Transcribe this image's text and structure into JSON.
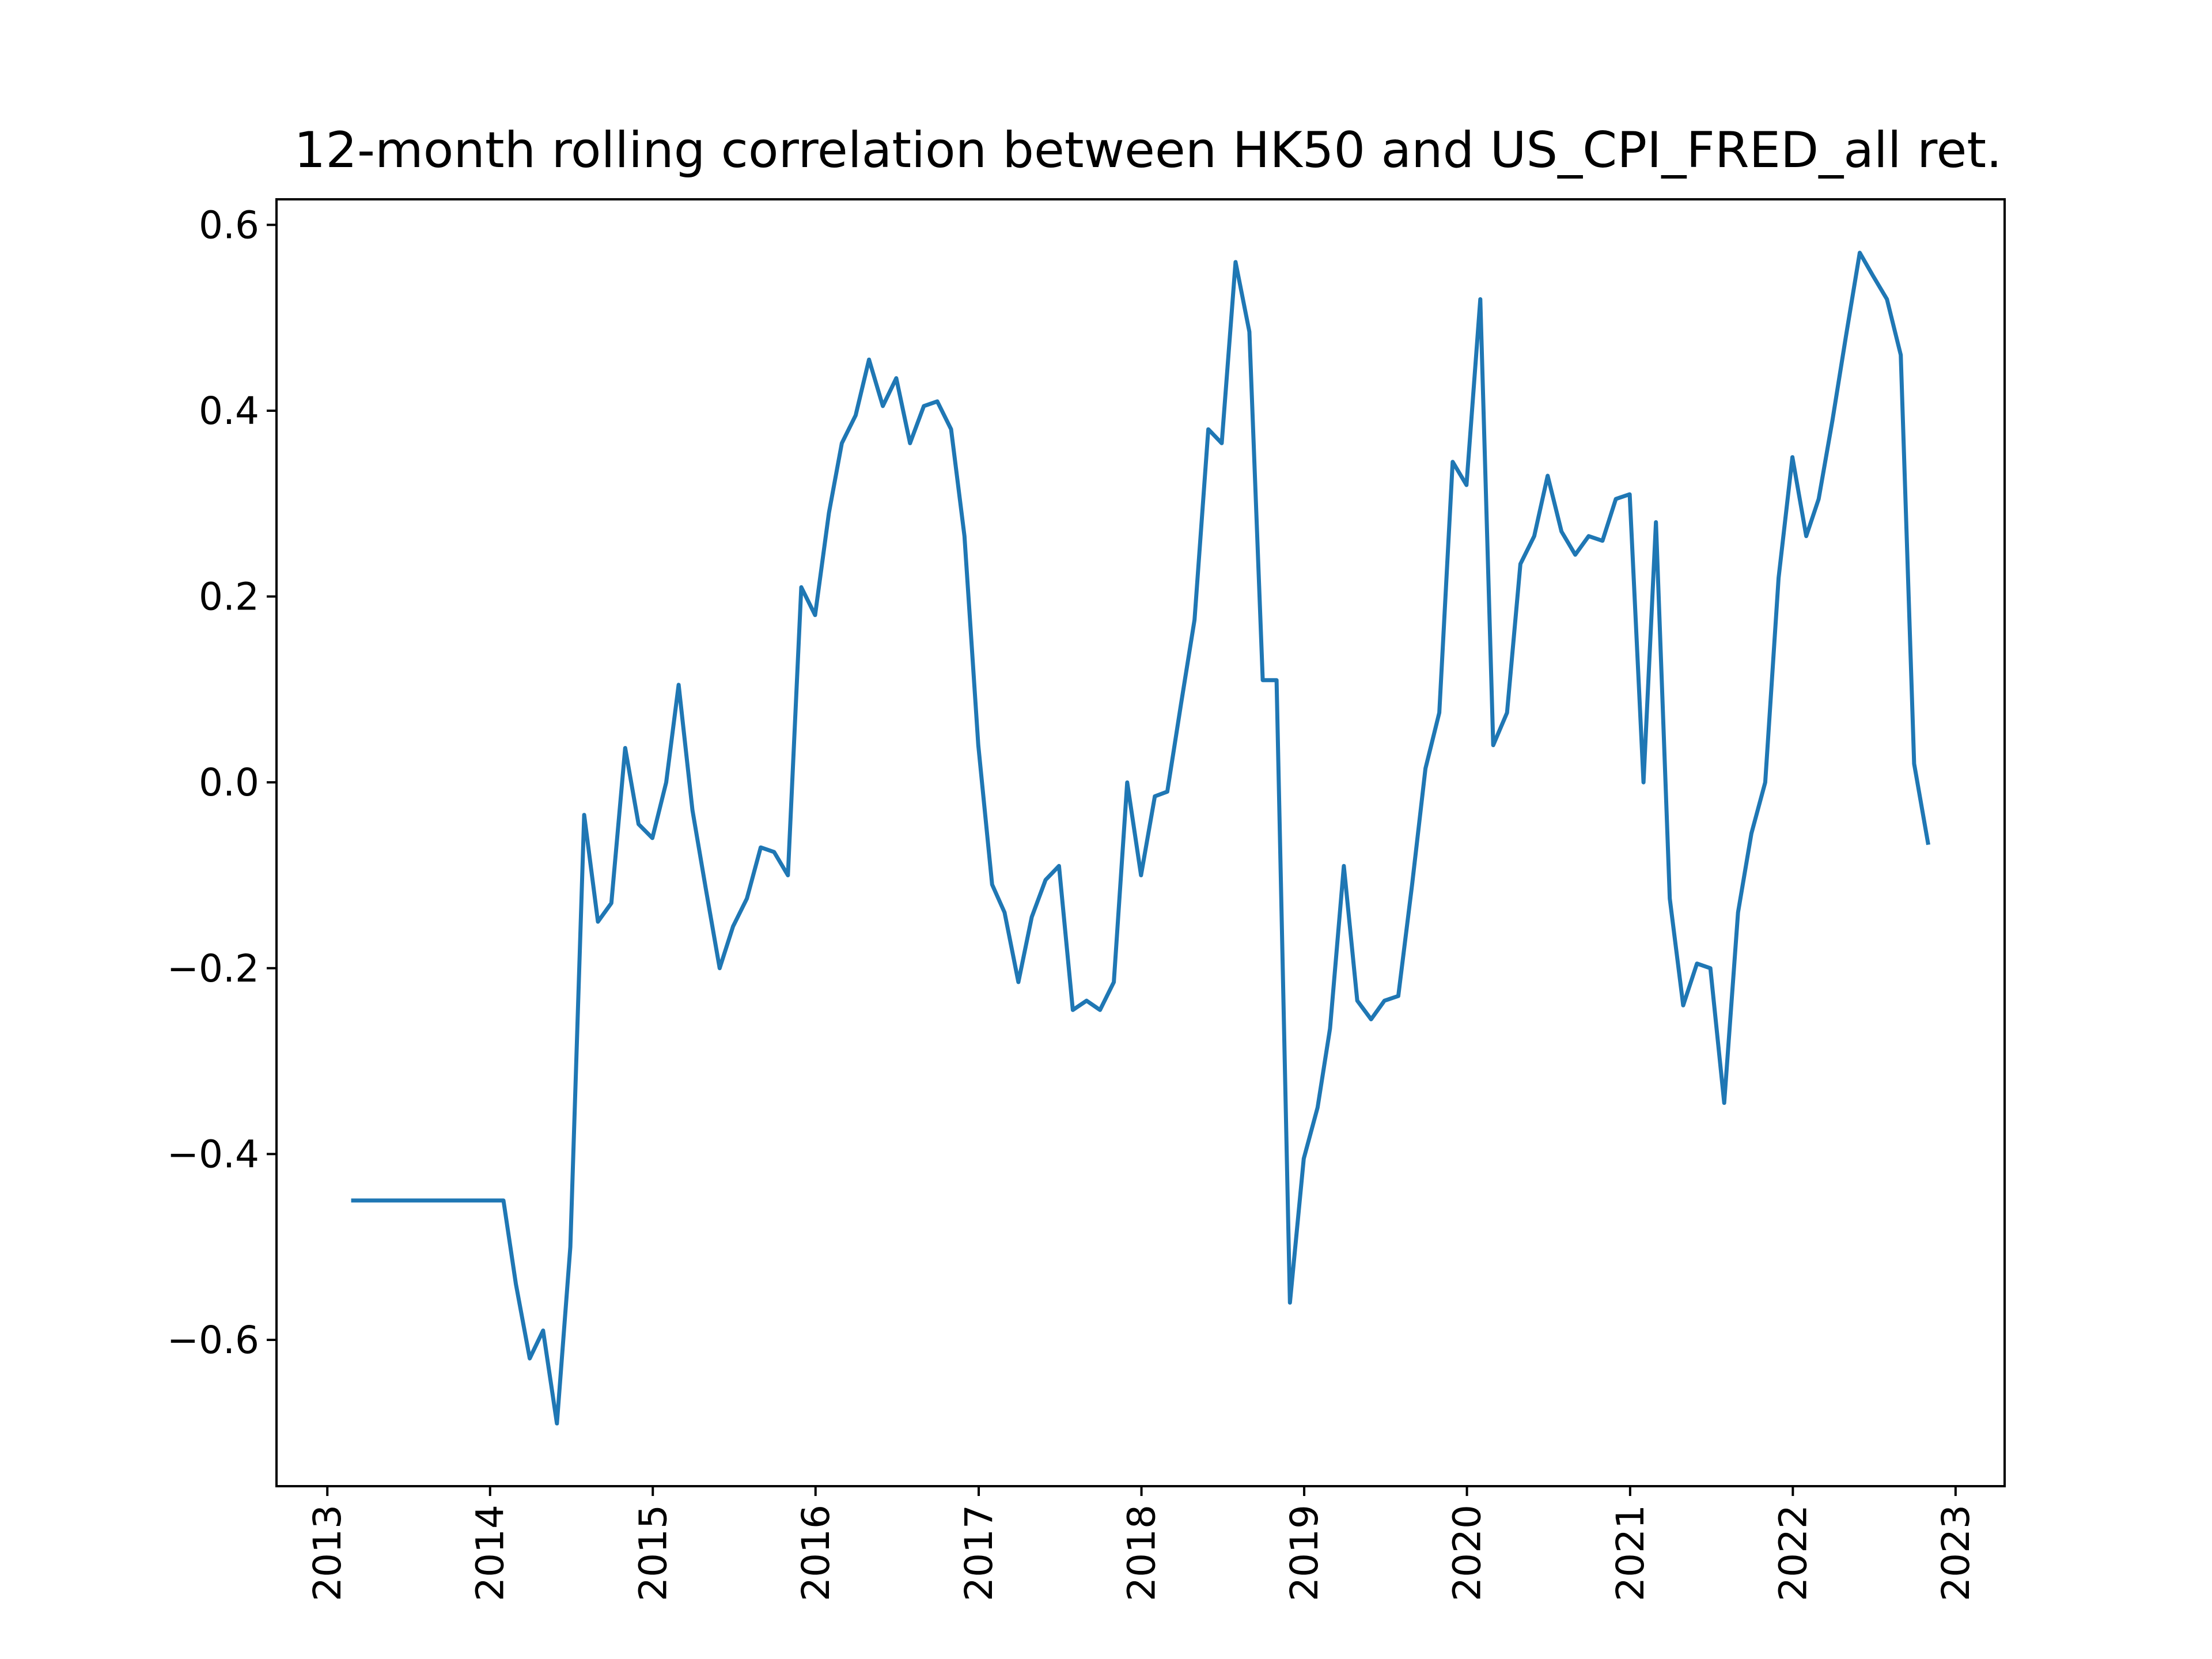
{
  "chart_data": {
    "type": "line",
    "title": "12-month rolling correlation between HK50 and US_CPI_FRED_all ret.",
    "xlabel": "",
    "ylabel": "",
    "xlim": [
      "2012-09-09",
      "2023-04-21"
    ],
    "ylim": [
      -0.7575,
      0.6275
    ],
    "x_ticks": [
      "2013",
      "2014",
      "2015",
      "2016",
      "2017",
      "2018",
      "2019",
      "2020",
      "2021",
      "2022",
      "2023"
    ],
    "y_ticks": [
      -0.6,
      -0.4,
      -0.2,
      0.0,
      0.2,
      0.4,
      0.6
    ],
    "y_tick_labels": [
      "−0.6",
      "−0.4",
      "−0.2",
      "0.0",
      "0.2",
      "0.4",
      "0.6"
    ],
    "grid": false,
    "legend": "none",
    "series": [
      {
        "color": "#1f77b4",
        "points": [
          [
            "2013-02-28",
            -0.45
          ],
          [
            "2013-03-31",
            -0.45
          ],
          [
            "2013-04-30",
            -0.45
          ],
          [
            "2013-05-31",
            -0.45
          ],
          [
            "2013-06-30",
            -0.45
          ],
          [
            "2013-07-31",
            -0.45
          ],
          [
            "2013-08-31",
            -0.45
          ],
          [
            "2013-09-30",
            -0.45
          ],
          [
            "2013-10-31",
            -0.45
          ],
          [
            "2013-11-30",
            -0.45
          ],
          [
            "2013-12-31",
            -0.45
          ],
          [
            "2014-01-31",
            -0.45
          ],
          [
            "2014-02-28",
            -0.54
          ],
          [
            "2014-03-31",
            -0.62
          ],
          [
            "2014-04-30",
            -0.59
          ],
          [
            "2014-05-31",
            -0.69
          ],
          [
            "2014-06-30",
            -0.5
          ],
          [
            "2014-07-31",
            -0.035
          ],
          [
            "2014-08-31",
            -0.15
          ],
          [
            "2014-09-30",
            -0.13
          ],
          [
            "2014-10-31",
            0.037
          ],
          [
            "2014-11-30",
            -0.045
          ],
          [
            "2014-12-31",
            -0.06
          ],
          [
            "2015-01-31",
            0.0
          ],
          [
            "2015-02-28",
            0.105
          ],
          [
            "2015-03-31",
            -0.03
          ],
          [
            "2015-04-30",
            -0.115
          ],
          [
            "2015-05-31",
            -0.2
          ],
          [
            "2015-06-30",
            -0.155
          ],
          [
            "2015-07-31",
            -0.125
          ],
          [
            "2015-08-31",
            -0.07
          ],
          [
            "2015-09-30",
            -0.075
          ],
          [
            "2015-10-31",
            -0.1
          ],
          [
            "2015-11-30",
            0.21
          ],
          [
            "2015-12-31",
            0.18
          ],
          [
            "2016-01-31",
            0.29
          ],
          [
            "2016-02-29",
            0.365
          ],
          [
            "2016-03-31",
            0.395
          ],
          [
            "2016-04-30",
            0.455
          ],
          [
            "2016-05-31",
            0.405
          ],
          [
            "2016-06-30",
            0.435
          ],
          [
            "2016-07-31",
            0.365
          ],
          [
            "2016-08-31",
            0.405
          ],
          [
            "2016-09-30",
            0.41
          ],
          [
            "2016-10-31",
            0.38
          ],
          [
            "2016-11-30",
            0.265
          ],
          [
            "2016-12-31",
            0.04
          ],
          [
            "2017-01-31",
            -0.11
          ],
          [
            "2017-02-28",
            -0.14
          ],
          [
            "2017-03-31",
            -0.215
          ],
          [
            "2017-04-30",
            -0.145
          ],
          [
            "2017-05-31",
            -0.105
          ],
          [
            "2017-06-30",
            -0.09
          ],
          [
            "2017-07-31",
            -0.245
          ],
          [
            "2017-08-31",
            -0.235
          ],
          [
            "2017-09-30",
            -0.245
          ],
          [
            "2017-10-31",
            -0.215
          ],
          [
            "2017-11-30",
            0.0
          ],
          [
            "2017-12-31",
            -0.1
          ],
          [
            "2018-01-31",
            -0.015
          ],
          [
            "2018-02-28",
            -0.01
          ],
          [
            "2018-03-31",
            0.085
          ],
          [
            "2018-04-30",
            0.175
          ],
          [
            "2018-05-31",
            0.38
          ],
          [
            "2018-06-30",
            0.365
          ],
          [
            "2018-07-31",
            0.56
          ],
          [
            "2018-08-31",
            0.485
          ],
          [
            "2018-09-30",
            0.11
          ],
          [
            "2018-10-31",
            0.11
          ],
          [
            "2018-11-30",
            -0.56
          ],
          [
            "2018-12-31",
            -0.405
          ],
          [
            "2019-01-31",
            -0.35
          ],
          [
            "2019-02-28",
            -0.265
          ],
          [
            "2019-03-31",
            -0.09
          ],
          [
            "2019-04-30",
            -0.235
          ],
          [
            "2019-05-31",
            -0.255
          ],
          [
            "2019-06-30",
            -0.235
          ],
          [
            "2019-07-31",
            -0.23
          ],
          [
            "2019-08-31",
            -0.11
          ],
          [
            "2019-09-30",
            0.015
          ],
          [
            "2019-10-31",
            0.075
          ],
          [
            "2019-11-30",
            0.345
          ],
          [
            "2019-12-31",
            0.32
          ],
          [
            "2020-01-31",
            0.52
          ],
          [
            "2020-02-29",
            0.04
          ],
          [
            "2020-03-31",
            0.075
          ],
          [
            "2020-04-30",
            0.235
          ],
          [
            "2020-05-31",
            0.265
          ],
          [
            "2020-06-30",
            0.33
          ],
          [
            "2020-07-31",
            0.27
          ],
          [
            "2020-08-31",
            0.245
          ],
          [
            "2020-09-30",
            0.265
          ],
          [
            "2020-10-31",
            0.26
          ],
          [
            "2020-11-30",
            0.305
          ],
          [
            "2020-12-31",
            0.31
          ],
          [
            "2021-01-31",
            0.0
          ],
          [
            "2021-02-28",
            0.28
          ],
          [
            "2021-03-31",
            -0.125
          ],
          [
            "2021-04-30",
            -0.24
          ],
          [
            "2021-05-31",
            -0.195
          ],
          [
            "2021-06-30",
            -0.2
          ],
          [
            "2021-07-31",
            -0.345
          ],
          [
            "2021-08-31",
            -0.14
          ],
          [
            "2021-09-30",
            -0.055
          ],
          [
            "2021-10-31",
            0.0
          ],
          [
            "2021-11-30",
            0.22
          ],
          [
            "2021-12-31",
            0.35
          ],
          [
            "2022-01-31",
            0.265
          ],
          [
            "2022-02-28",
            0.305
          ],
          [
            "2022-03-31",
            0.39
          ],
          [
            "2022-04-30",
            0.48
          ],
          [
            "2022-05-31",
            0.57
          ],
          [
            "2022-06-30",
            0.545
          ],
          [
            "2022-07-31",
            0.52
          ],
          [
            "2022-08-31",
            0.46
          ],
          [
            "2022-09-30",
            0.02
          ],
          [
            "2022-10-31",
            -0.065
          ]
        ]
      }
    ]
  }
}
